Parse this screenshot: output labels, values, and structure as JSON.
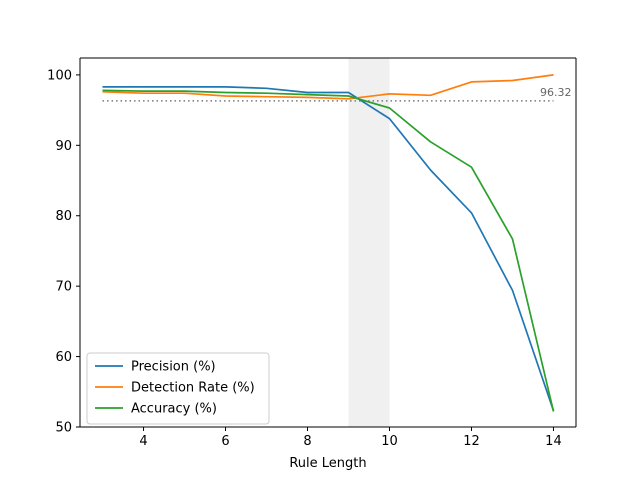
{
  "chart_data": {
    "type": "line",
    "xlabel": "Rule Length",
    "ylabel": "",
    "xlim": [
      2.45,
      14.55
    ],
    "ylim": [
      50,
      102.4
    ],
    "xticks": [
      4,
      6,
      8,
      10,
      12,
      14
    ],
    "yticks": [
      50,
      60,
      70,
      80,
      90,
      100
    ],
    "grid": false,
    "legend_position": "lower-left",
    "highlight_band": {
      "x": [
        9,
        10
      ],
      "color": "#f0f0f0"
    },
    "reference_line": {
      "y": 96.32,
      "label": "96.32",
      "color": "#777777",
      "style": "dotted"
    },
    "x": [
      3,
      4,
      5,
      6,
      7,
      8,
      9,
      10,
      11,
      12,
      13,
      14
    ],
    "series": [
      {
        "name": "Precision (%)",
        "color": "#1f77b4",
        "values": [
          98.3,
          98.3,
          98.3,
          98.3,
          98.1,
          97.5,
          97.5,
          93.8,
          86.5,
          80.4,
          69.4,
          52.3
        ]
      },
      {
        "name": "Detection Rate (%)",
        "color": "#ff7f0e",
        "values": [
          97.6,
          97.4,
          97.4,
          97.0,
          96.9,
          96.8,
          96.6,
          97.3,
          97.1,
          99.0,
          99.2,
          100.0
        ]
      },
      {
        "name": "Accuracy (%)",
        "color": "#2ca02c",
        "values": [
          97.8,
          97.7,
          97.7,
          97.5,
          97.4,
          97.2,
          97.0,
          95.3,
          90.5,
          86.9,
          76.7,
          52.2
        ]
      }
    ]
  }
}
